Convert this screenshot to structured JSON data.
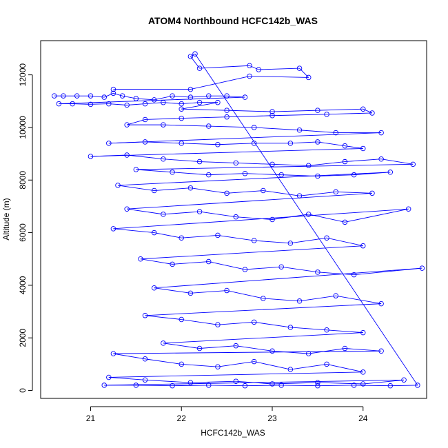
{
  "chart_data": {
    "type": "scatter",
    "title": "ATOM4 Northbound HCFC142b_WAS",
    "xlabel": "HCFC142b_WAS",
    "ylabel": "Altitude (m)",
    "xlim": [
      20.45,
      24.7
    ],
    "ylim": [
      -300,
      13300
    ],
    "x_ticks": [
      21,
      22,
      23,
      24
    ],
    "y_ticks": [
      0,
      2000,
      4000,
      6000,
      8000,
      10000,
      12000
    ],
    "grid": false,
    "legend": "none",
    "series_color": "#0000ff",
    "marker": "open-circle",
    "connected": true,
    "series": [
      {
        "points": [
          [
            20.6,
            11200
          ],
          [
            20.7,
            11200
          ],
          [
            20.85,
            11200
          ],
          [
            21.0,
            11200
          ],
          [
            21.15,
            11150
          ],
          [
            21.25,
            11300
          ],
          [
            21.35,
            11200
          ],
          [
            21.5,
            11100
          ],
          [
            21.7,
            11050
          ],
          [
            21.9,
            11200
          ],
          [
            22.1,
            11150
          ],
          [
            22.3,
            11200
          ],
          [
            22.5,
            11200
          ],
          [
            22.7,
            11150
          ],
          [
            20.65,
            10900
          ],
          [
            20.8,
            10900
          ],
          [
            21.0,
            10880
          ],
          [
            21.2,
            10900
          ],
          [
            21.4,
            10850
          ],
          [
            21.6,
            10900
          ],
          [
            21.8,
            10950
          ],
          [
            22.0,
            10900
          ],
          [
            22.2,
            10950
          ],
          [
            22.4,
            10950
          ],
          [
            22.0,
            10700
          ],
          [
            22.5,
            10650
          ],
          [
            23.0,
            10600
          ],
          [
            23.5,
            10650
          ],
          [
            24.0,
            10700
          ],
          [
            24.1,
            10550
          ],
          [
            23.6,
            10500
          ],
          [
            23.0,
            10450
          ],
          [
            22.5,
            10400
          ],
          [
            22.0,
            10350
          ],
          [
            21.6,
            10300
          ],
          [
            21.4,
            10100
          ],
          [
            21.8,
            10100
          ],
          [
            22.3,
            10050
          ],
          [
            22.8,
            10000
          ],
          [
            23.3,
            9900
          ],
          [
            23.7,
            9800
          ],
          [
            24.2,
            9800
          ],
          [
            21.2,
            9400
          ],
          [
            21.6,
            9450
          ],
          [
            22.0,
            9400
          ],
          [
            22.4,
            9350
          ],
          [
            22.8,
            9400
          ],
          [
            23.2,
            9400
          ],
          [
            23.5,
            9450
          ],
          [
            23.8,
            9300
          ],
          [
            24.0,
            9200
          ],
          [
            21.0,
            8900
          ],
          [
            21.4,
            8950
          ],
          [
            21.8,
            8800
          ],
          [
            22.2,
            8700
          ],
          [
            22.6,
            8650
          ],
          [
            23.0,
            8600
          ],
          [
            23.4,
            8550
          ],
          [
            23.8,
            8700
          ],
          [
            24.2,
            8800
          ],
          [
            24.55,
            8600
          ],
          [
            21.5,
            8400
          ],
          [
            21.9,
            8300
          ],
          [
            22.3,
            8200
          ],
          [
            22.7,
            8250
          ],
          [
            23.1,
            8200
          ],
          [
            23.5,
            8150
          ],
          [
            23.9,
            8200
          ],
          [
            24.3,
            8300
          ],
          [
            21.3,
            7800
          ],
          [
            21.7,
            7600
          ],
          [
            22.1,
            7700
          ],
          [
            22.5,
            7500
          ],
          [
            22.9,
            7600
          ],
          [
            23.3,
            7400
          ],
          [
            23.7,
            7550
          ],
          [
            24.1,
            7500
          ],
          [
            21.4,
            6900
          ],
          [
            21.8,
            6700
          ],
          [
            22.2,
            6800
          ],
          [
            22.6,
            6600
          ],
          [
            23.0,
            6500
          ],
          [
            23.4,
            6700
          ],
          [
            23.8,
            6400
          ],
          [
            24.5,
            6900
          ],
          [
            21.25,
            6150
          ],
          [
            21.7,
            6000
          ],
          [
            22.0,
            5800
          ],
          [
            22.4,
            5900
          ],
          [
            22.8,
            5700
          ],
          [
            23.2,
            5600
          ],
          [
            23.6,
            5800
          ],
          [
            24.0,
            5500
          ],
          [
            21.55,
            5000
          ],
          [
            21.9,
            4800
          ],
          [
            22.3,
            4900
          ],
          [
            22.7,
            4600
          ],
          [
            23.1,
            4700
          ],
          [
            23.5,
            4500
          ],
          [
            23.9,
            4400
          ],
          [
            24.65,
            4650
          ],
          [
            21.7,
            3900
          ],
          [
            22.1,
            3700
          ],
          [
            22.5,
            3800
          ],
          [
            22.9,
            3500
          ],
          [
            23.3,
            3400
          ],
          [
            23.7,
            3600
          ],
          [
            24.2,
            3300
          ],
          [
            21.6,
            2850
          ],
          [
            22.0,
            2700
          ],
          [
            22.4,
            2500
          ],
          [
            22.8,
            2600
          ],
          [
            23.2,
            2400
          ],
          [
            23.6,
            2300
          ],
          [
            24.0,
            2200
          ],
          [
            21.8,
            1800
          ],
          [
            22.2,
            1600
          ],
          [
            22.6,
            1700
          ],
          [
            23.0,
            1500
          ],
          [
            23.4,
            1400
          ],
          [
            23.8,
            1600
          ],
          [
            24.2,
            1500
          ],
          [
            21.25,
            1400
          ],
          [
            21.6,
            1200
          ],
          [
            22.0,
            1000
          ],
          [
            22.4,
            900
          ],
          [
            22.8,
            1100
          ],
          [
            23.2,
            800
          ],
          [
            23.6,
            1000
          ],
          [
            24.0,
            700
          ],
          [
            21.2,
            500
          ],
          [
            21.6,
            400
          ],
          [
            22.1,
            300
          ],
          [
            22.6,
            350
          ],
          [
            23.0,
            250
          ],
          [
            23.5,
            300
          ],
          [
            24.0,
            250
          ],
          [
            24.45,
            400
          ],
          [
            21.15,
            200
          ],
          [
            21.5,
            200
          ],
          [
            21.9,
            180
          ],
          [
            22.3,
            200
          ],
          [
            22.7,
            180
          ],
          [
            23.1,
            200
          ],
          [
            23.5,
            180
          ],
          [
            23.9,
            200
          ],
          [
            24.3,
            180
          ],
          [
            24.6,
            200
          ],
          [
            22.15,
            12800
          ],
          [
            22.1,
            12700
          ],
          [
            22.2,
            12250
          ],
          [
            22.75,
            12350
          ],
          [
            22.85,
            12200
          ],
          [
            23.3,
            12250
          ],
          [
            23.4,
            11900
          ],
          [
            22.75,
            11950
          ],
          [
            22.1,
            11450
          ],
          [
            21.25,
            11450
          ]
        ]
      }
    ]
  }
}
